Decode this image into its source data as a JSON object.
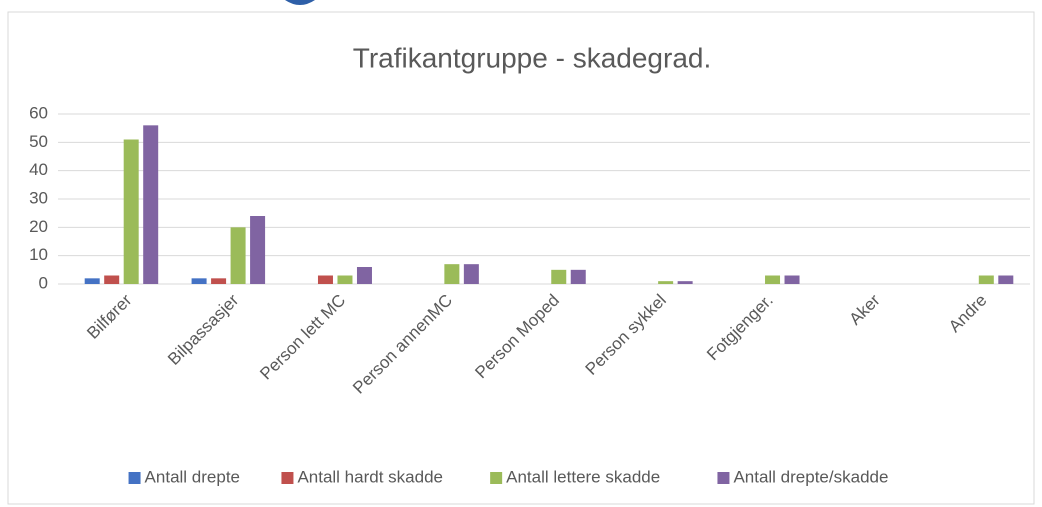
{
  "chart_data": {
    "type": "bar",
    "title": "Trafikantgruppe - skadegrad.",
    "categories": [
      "Bilfører",
      "Bilpassasjer",
      "Person lett MC",
      "Person annenMC",
      "Person Moped",
      "Person sykkel",
      "Fotgjenger.",
      "Aker",
      "Andre"
    ],
    "series": [
      {
        "name": "Antall drepte",
        "color": "#4472c4",
        "values": [
          2,
          2,
          0,
          0,
          0,
          0,
          0,
          0,
          0
        ]
      },
      {
        "name": "Antall hardt skadde",
        "color": "#c0504d",
        "values": [
          3,
          2,
          3,
          0,
          0,
          0,
          0,
          0,
          0
        ]
      },
      {
        "name": "Antall lettere skadde",
        "color": "#9bbb59",
        "values": [
          51,
          20,
          3,
          7,
          5,
          1,
          3,
          0,
          3
        ]
      },
      {
        "name": "Antall drepte/skadde",
        "color": "#8064a2",
        "values": [
          56,
          24,
          6,
          7,
          5,
          1,
          3,
          0,
          3
        ]
      }
    ],
    "ylim": [
      0,
      60
    ],
    "yticks": [
      0,
      10,
      20,
      30,
      40,
      50,
      60
    ],
    "grid": true,
    "legend": "bottom"
  }
}
